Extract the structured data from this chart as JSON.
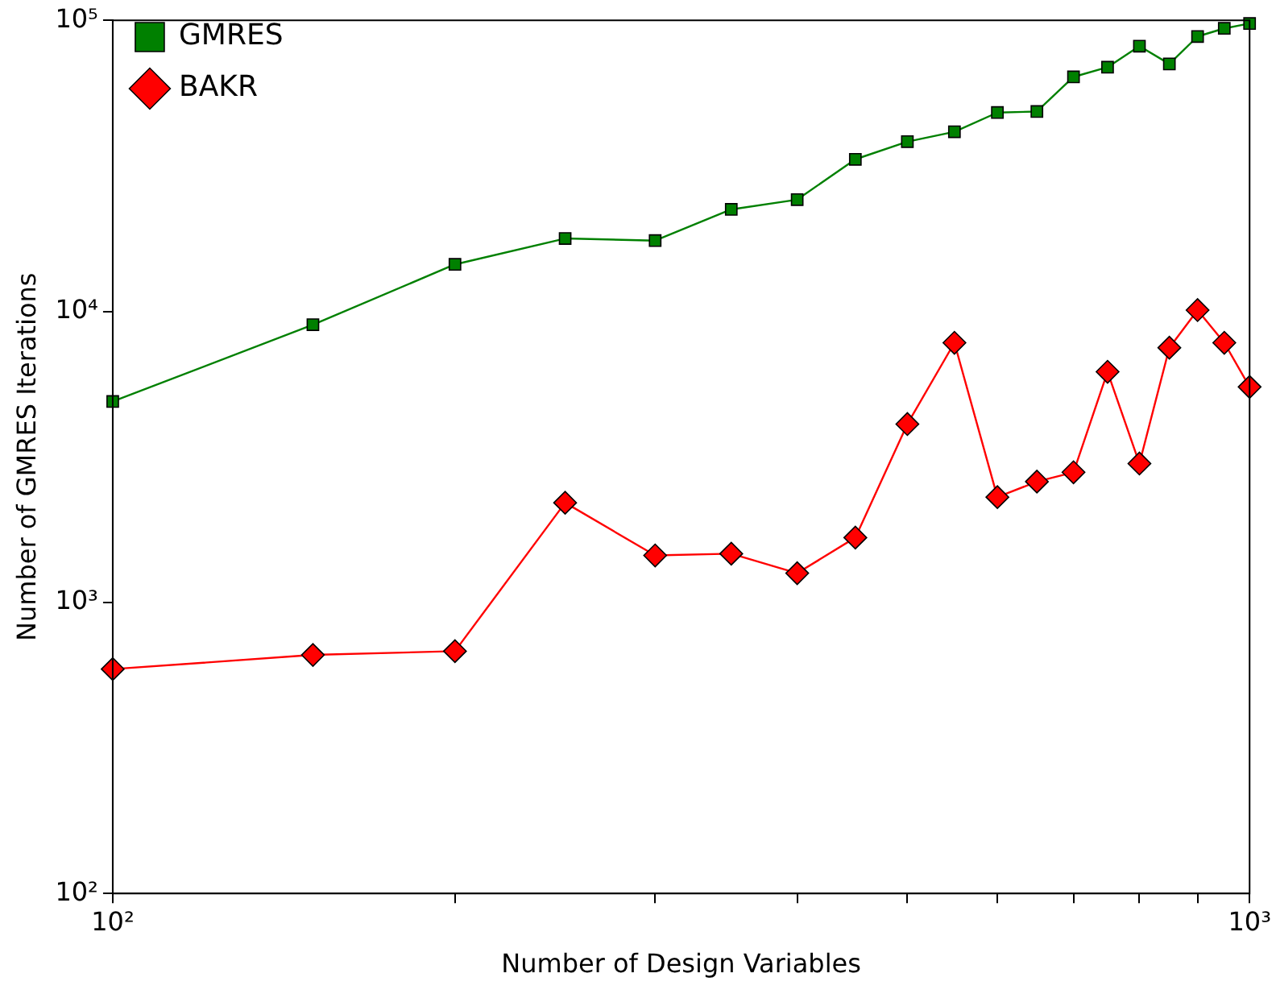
{
  "chart_data": {
    "type": "line",
    "xlabel": "Number of Design Variables",
    "ylabel": "Number of GMRES Iterations",
    "log": "xy",
    "legend": "top left",
    "grid": false,
    "x": [
      100,
      150,
      200,
      250,
      300,
      350,
      400,
      450,
      500,
      550,
      600,
      650,
      700,
      750,
      800,
      850,
      900,
      950,
      1000
    ],
    "xlim": [
      100,
      1000
    ],
    "ylim": [
      100,
      100000
    ],
    "xticks": [
      {
        "value": 100,
        "label": "10²"
      },
      {
        "value": 200,
        "label": null
      },
      {
        "value": 300,
        "label": null
      },
      {
        "value": 400,
        "label": null
      },
      {
        "value": 500,
        "label": null
      },
      {
        "value": 600,
        "label": null
      },
      {
        "value": 700,
        "label": null
      },
      {
        "value": 800,
        "label": null
      },
      {
        "value": 900,
        "label": null
      },
      {
        "value": 1000,
        "label": "10³"
      }
    ],
    "yticks": [
      {
        "value": 100,
        "label": "10²"
      },
      {
        "value": 1000,
        "label": "10³"
      },
      {
        "value": 10000,
        "label": "10⁴"
      },
      {
        "value": 100000,
        "label": "10⁵"
      }
    ],
    "series": [
      {
        "name": "GMRES",
        "color": "#008000",
        "marker": "square",
        "values": [
          4900,
          9000,
          14500,
          17800,
          17500,
          22400,
          24200,
          33300,
          38300,
          41400,
          48200,
          48600,
          63900,
          69000,
          81500,
          70800,
          88000,
          93800,
          97500
        ]
      },
      {
        "name": "BAKR",
        "color": "#ff0000",
        "marker": "diamond",
        "values": [
          590,
          660,
          680,
          2200,
          1450,
          1470,
          1260,
          1670,
          4100,
          7800,
          2300,
          2600,
          2800,
          6200,
          3000,
          7500,
          10100,
          7800,
          5500
        ]
      }
    ]
  }
}
